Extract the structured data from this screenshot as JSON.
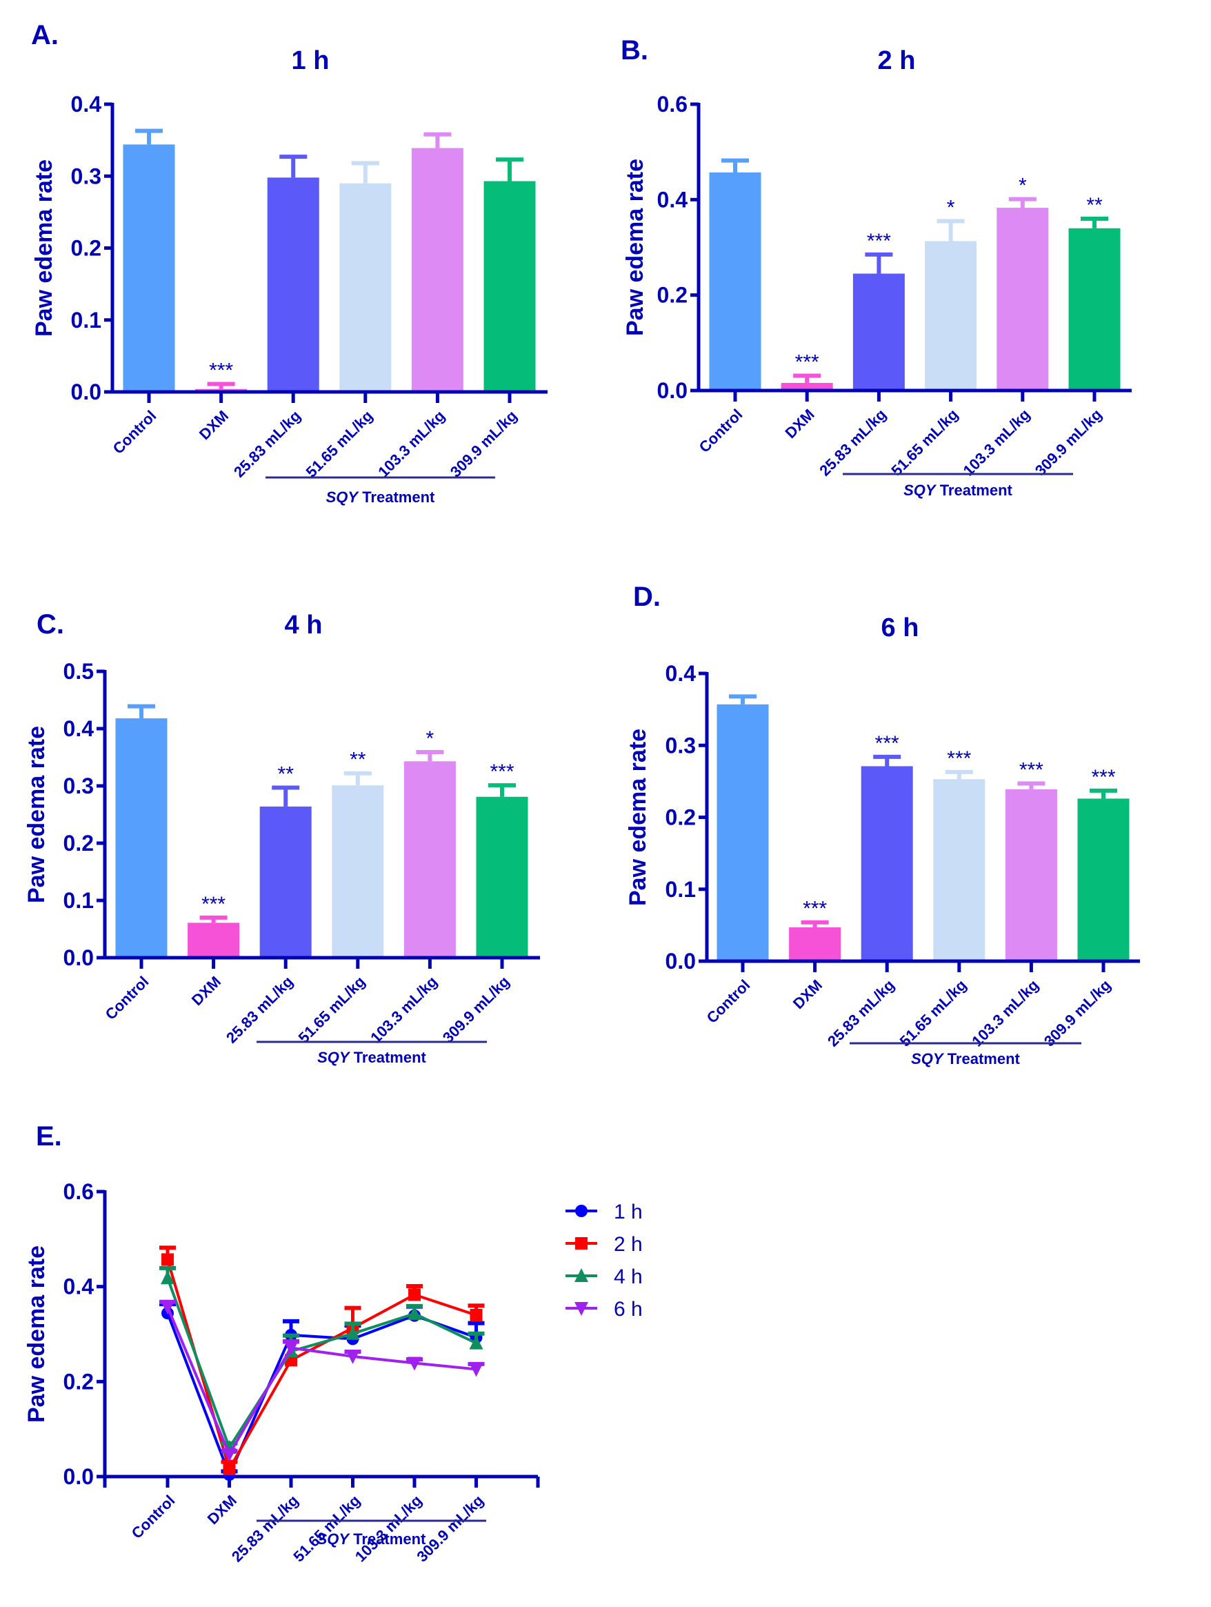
{
  "figure": {
    "group_label_italic": "SQY",
    "group_label_rest": " Treatment"
  },
  "chart_data": [
    {
      "id": "A",
      "panel_letter": "A.",
      "type": "bar",
      "title": "1 h",
      "xlabel": "",
      "ylabel": "Paw edema rate",
      "ylim": [
        0,
        0.4
      ],
      "yticks": [
        "0.0",
        "0.1",
        "0.2",
        "0.3",
        "0.4"
      ],
      "categories": [
        "Control",
        "DXM",
        "25.83 mL/kg",
        "51.65 mL/kg",
        "103.3 mL/kg",
        "309.9 mL/kg"
      ],
      "values": [
        0.344,
        0.004,
        0.298,
        0.29,
        0.339,
        0.293
      ],
      "error_upper": [
        0.363,
        0.011,
        0.327,
        0.318,
        0.358,
        0.323
      ],
      "significance": [
        "",
        "***",
        "",
        "",
        "",
        ""
      ],
      "colors": [
        "#569ffd",
        "#f552d8",
        "#5b59f7",
        "#c9ddf7",
        "#dd8af5",
        "#05bd78"
      ]
    },
    {
      "id": "B",
      "panel_letter": "B.",
      "type": "bar",
      "title": "2 h",
      "xlabel": "",
      "ylabel": "Paw edema rate",
      "ylim": [
        0,
        0.6
      ],
      "yticks": [
        "0.0",
        "0.2",
        "0.4",
        "0.6"
      ],
      "categories": [
        "Control",
        "DXM",
        "25.83 mL/kg",
        "51.65 mL/kg",
        "103.3 mL/kg",
        "309.9 mL/kg"
      ],
      "values": [
        0.457,
        0.016,
        0.245,
        0.313,
        0.383,
        0.34
      ],
      "error_upper": [
        0.482,
        0.031,
        0.285,
        0.355,
        0.401,
        0.36
      ],
      "significance": [
        "",
        "***",
        "***",
        "*",
        "*",
        "**"
      ],
      "colors": [
        "#569ffd",
        "#f552d8",
        "#5b59f7",
        "#c9ddf7",
        "#dd8af5",
        "#05bd78"
      ]
    },
    {
      "id": "C",
      "panel_letter": "C.",
      "type": "bar",
      "title": "4 h",
      "xlabel": "",
      "ylabel": "Paw edema rate",
      "ylim": [
        0,
        0.5
      ],
      "yticks": [
        "0.0",
        "0.1",
        "0.2",
        "0.3",
        "0.4",
        "0.5"
      ],
      "categories": [
        "Control",
        "DXM",
        "25.83 mL/kg",
        "51.65 mL/kg",
        "103.3 mL/kg",
        "309.9 mL/kg"
      ],
      "values": [
        0.418,
        0.061,
        0.264,
        0.301,
        0.343,
        0.281
      ],
      "error_upper": [
        0.439,
        0.07,
        0.297,
        0.322,
        0.359,
        0.301
      ],
      "significance": [
        "",
        "***",
        "**",
        "**",
        "*",
        "***"
      ],
      "colors": [
        "#569ffd",
        "#f552d8",
        "#5b59f7",
        "#c9ddf7",
        "#dd8af5",
        "#05bd78"
      ]
    },
    {
      "id": "D",
      "panel_letter": "D.",
      "type": "bar",
      "title": "6 h",
      "xlabel": "",
      "ylabel": "Paw edema rate",
      "ylim": [
        0,
        0.4
      ],
      "yticks": [
        "0.0",
        "0.1",
        "0.2",
        "0.3",
        "0.4"
      ],
      "categories": [
        "Control",
        "DXM",
        "25.83 mL/kg",
        "51.65 mL/kg",
        "103.3 mL/kg",
        "309.9 mL/kg"
      ],
      "values": [
        0.357,
        0.047,
        0.271,
        0.253,
        0.239,
        0.226
      ],
      "error_upper": [
        0.368,
        0.054,
        0.284,
        0.263,
        0.247,
        0.237
      ],
      "significance": [
        "",
        "***",
        "***",
        "***",
        "***",
        "***"
      ],
      "colors": [
        "#569ffd",
        "#f552d8",
        "#5b59f7",
        "#c9ddf7",
        "#dd8af5",
        "#05bd78"
      ]
    },
    {
      "id": "E",
      "panel_letter": "E.",
      "type": "line",
      "title": "",
      "xlabel": "",
      "ylabel": "Paw edema rate",
      "ylim": [
        0,
        0.6
      ],
      "yticks": [
        "0.0",
        "0.2",
        "0.4",
        "0.6"
      ],
      "categories": [
        "Control",
        "DXM",
        "25.83 mL/kg",
        "51.65 mL/kg",
        "103.3 mL/kg",
        "309.9 mL/kg"
      ],
      "legend_position": "right",
      "series": [
        {
          "name": "1 h",
          "marker": "circle",
          "color": "#0000ff",
          "values": [
            0.344,
            0.004,
            0.298,
            0.29,
            0.339,
            0.293
          ],
          "error_upper": [
            0.363,
            0.011,
            0.327,
            0.318,
            0.358,
            0.323
          ]
        },
        {
          "name": "2 h",
          "marker": "square",
          "color": "#ff0000",
          "values": [
            0.457,
            0.016,
            0.245,
            0.313,
            0.383,
            0.34
          ],
          "error_upper": [
            0.482,
            0.031,
            0.285,
            0.355,
            0.401,
            0.36
          ]
        },
        {
          "name": "4 h",
          "marker": "triangle-up",
          "color": "#0f8f5f",
          "values": [
            0.418,
            0.061,
            0.264,
            0.301,
            0.343,
            0.281
          ],
          "error_upper": [
            0.439,
            0.07,
            0.297,
            0.322,
            0.359,
            0.301
          ]
        },
        {
          "name": "6 h",
          "marker": "triangle-down",
          "color": "#a020f0",
          "values": [
            0.357,
            0.047,
            0.271,
            0.253,
            0.239,
            0.226
          ],
          "error_upper": [
            0.368,
            0.054,
            0.284,
            0.263,
            0.247,
            0.237
          ]
        }
      ]
    }
  ]
}
